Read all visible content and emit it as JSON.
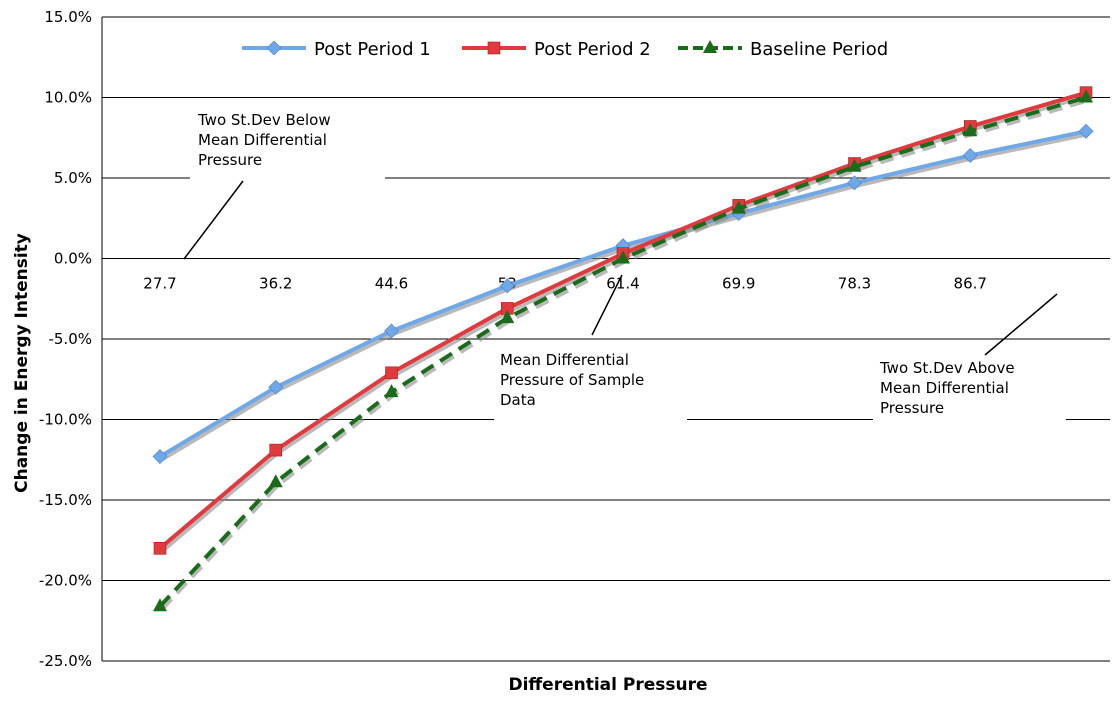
{
  "chart_data": {
    "type": "line",
    "title": "",
    "xlabel": "Differential Pressure",
    "ylabel": "Change in Energy Intensity",
    "categories": [
      "27.7",
      "36.2",
      "44.6",
      "53",
      "61.4",
      "69.9",
      "78.3",
      "86.7",
      ""
    ],
    "y_ticks": [
      "15.0%",
      "10.0%",
      "5.0%",
      "0.0%",
      "-5.0%",
      "-10.0%",
      "-15.0%",
      "-20.0%",
      "-25.0%"
    ],
    "ylim": [
      -25,
      15
    ],
    "y_unit": "%",
    "grid": true,
    "legend_position": "top",
    "series": [
      {
        "name": "Post Period 1",
        "color": "#6fa8e8",
        "marker": "diamond",
        "dashed": false,
        "values": [
          -12.3,
          -8.0,
          -4.5,
          -1.7,
          0.8,
          2.8,
          4.7,
          6.4,
          7.9
        ]
      },
      {
        "name": "Post Period 2",
        "color": "#e03a3e",
        "marker": "square",
        "dashed": false,
        "values": [
          -18.0,
          -11.9,
          -7.1,
          -3.1,
          0.3,
          3.3,
          5.9,
          8.2,
          10.3
        ]
      },
      {
        "name": "Baseline Period",
        "color": "#1a6b1a",
        "marker": "triangle",
        "dashed": true,
        "values": [
          -21.6,
          -13.9,
          -8.3,
          -3.7,
          0.0,
          3.1,
          5.7,
          7.9,
          10.0
        ]
      }
    ],
    "annotations": [
      {
        "lines": [
          "Two St.Dev Below",
          "Mean Differential",
          "Pressure"
        ]
      },
      {
        "lines": [
          "Mean Differential",
          "Pressure of Sample",
          "Data"
        ]
      },
      {
        "lines": [
          "Two St.Dev Above",
          "Mean Differential",
          "Pressure"
        ]
      }
    ]
  }
}
